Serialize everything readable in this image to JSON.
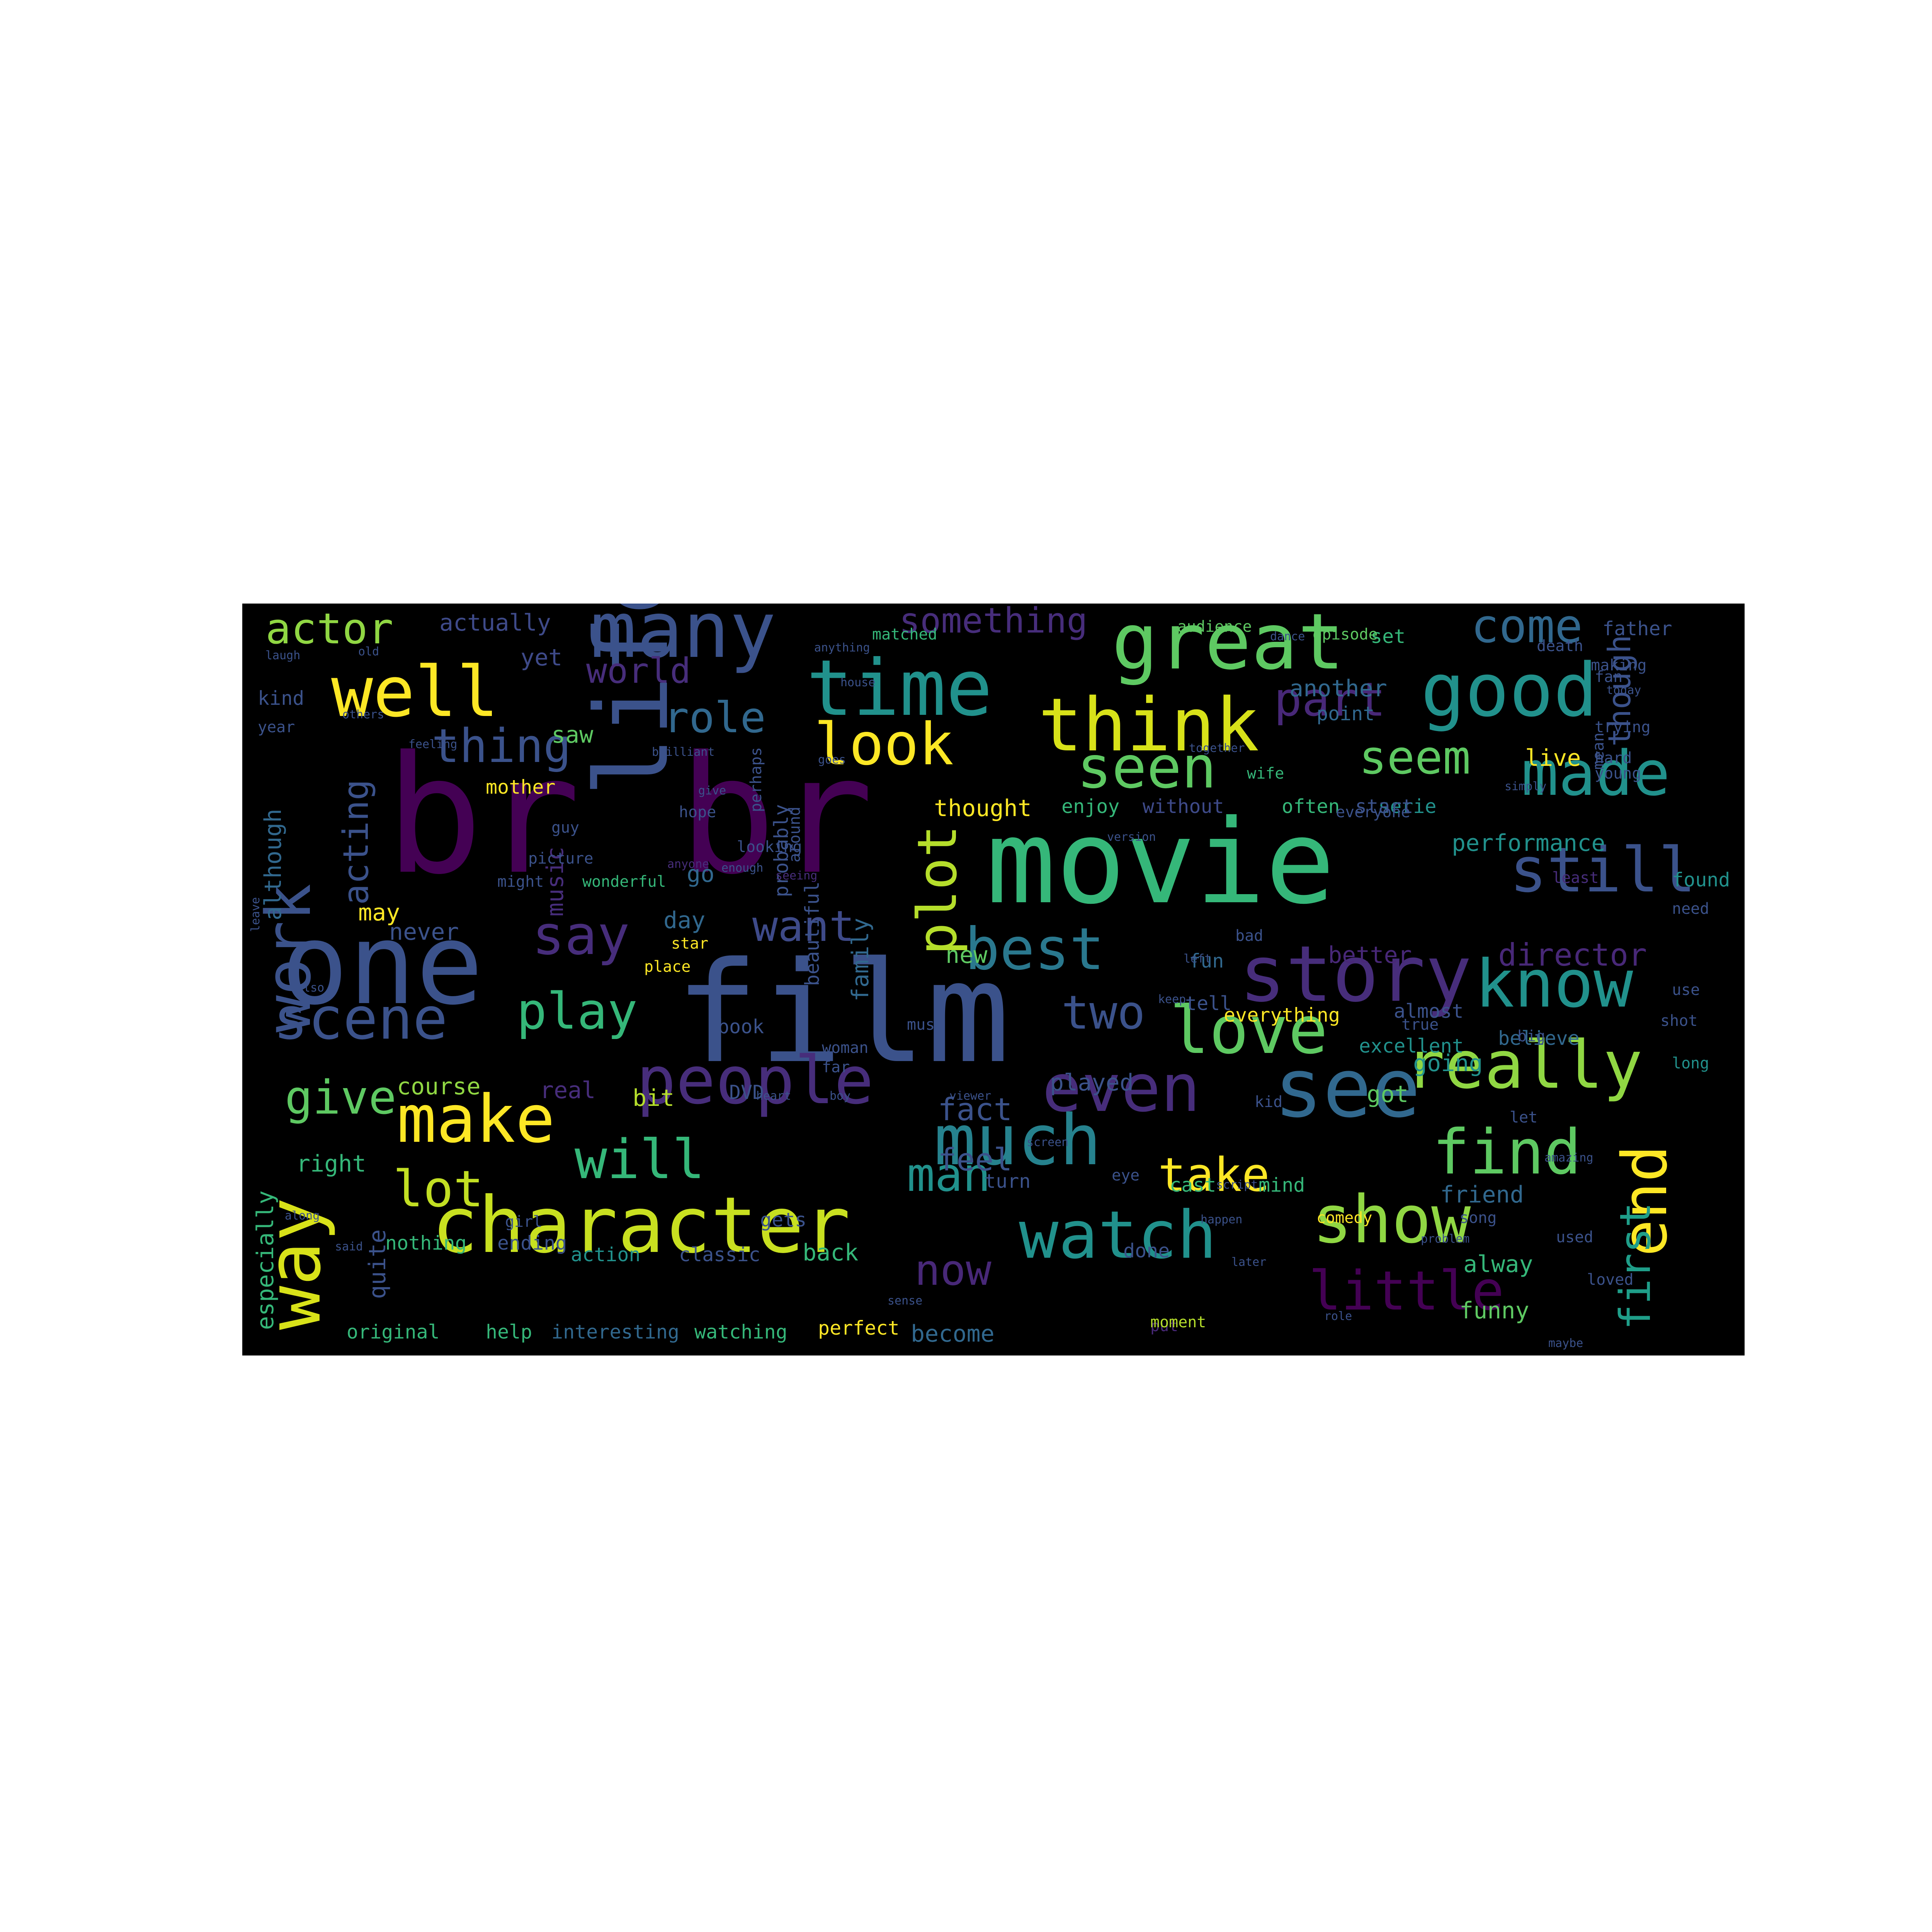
{
  "image": {
    "description_role": "word cloud rendered on black background",
    "background_color": "#000000",
    "page_color": "#ffffff",
    "palette": [
      "#440154",
      "#3b528b",
      "#21918c",
      "#5ec962",
      "#fde725",
      "#31688e",
      "#35b779",
      "#90d743",
      "#472d7b"
    ]
  },
  "words": [
    {
      "text": "br br",
      "color": "#440154"
    },
    {
      "text": "movie",
      "color": "#35b779"
    },
    {
      "text": "film",
      "color": "#3b528b"
    },
    {
      "text": "one",
      "color": "#3b528b"
    },
    {
      "text": "character",
      "color": "#c8e020"
    },
    {
      "text": "time",
      "color": "#21918c"
    },
    {
      "text": "great",
      "color": "#5ec962"
    },
    {
      "text": "good",
      "color": "#21918c"
    },
    {
      "text": "think",
      "color": "#d8e219"
    },
    {
      "text": "life",
      "color": "#3b528b"
    },
    {
      "text": "many",
      "color": "#3b528b"
    },
    {
      "text": "well",
      "color": "#fde725"
    },
    {
      "text": "story",
      "color": "#472d7b"
    },
    {
      "text": "see",
      "color": "#31688e"
    },
    {
      "text": "even",
      "color": "#472d7b"
    },
    {
      "text": "people",
      "color": "#472d7b"
    },
    {
      "text": "make",
      "color": "#fde725"
    },
    {
      "text": "watch",
      "color": "#21918c"
    },
    {
      "text": "much",
      "color": "#26828e"
    },
    {
      "text": "show",
      "color": "#90d743"
    },
    {
      "text": "really",
      "color": "#90d743"
    },
    {
      "text": "know",
      "color": "#21918c"
    },
    {
      "text": "love",
      "color": "#5ec962"
    },
    {
      "text": "made",
      "color": "#21918c"
    },
    {
      "text": "still",
      "color": "#3b528b"
    },
    {
      "text": "scene",
      "color": "#3b528b"
    },
    {
      "text": "way",
      "color": "#d8e219"
    },
    {
      "text": "work",
      "color": "#3b528b"
    },
    {
      "text": "best",
      "color": "#2a788e"
    },
    {
      "text": "say",
      "color": "#472d7b"
    },
    {
      "text": "look",
      "color": "#fde725"
    },
    {
      "text": "seen",
      "color": "#5ec962"
    },
    {
      "text": "little",
      "color": "#440154"
    },
    {
      "text": "find",
      "color": "#5ec962"
    },
    {
      "text": "end",
      "color": "#fde725"
    },
    {
      "text": "will",
      "color": "#35b779"
    },
    {
      "text": "play",
      "color": "#35b779"
    },
    {
      "text": "plot",
      "color": "#b5de2b"
    },
    {
      "text": "want",
      "color": "#3e4a89"
    },
    {
      "text": "thing",
      "color": "#3b528b"
    },
    {
      "text": "come",
      "color": "#31688e"
    },
    {
      "text": "part",
      "color": "#482878"
    },
    {
      "text": "seem",
      "color": "#5ec962"
    },
    {
      "text": "two",
      "color": "#3b528b"
    },
    {
      "text": "take",
      "color": "#fde725"
    },
    {
      "text": "give",
      "color": "#5ec962"
    },
    {
      "text": "lot",
      "color": "#c2df23"
    },
    {
      "text": "man",
      "color": "#21918c"
    },
    {
      "text": "now",
      "color": "#482878"
    },
    {
      "text": "first",
      "color": "#1f9e89"
    },
    {
      "text": "role",
      "color": "#31688e"
    },
    {
      "text": "actor",
      "color": "#90d743"
    },
    {
      "text": "acting",
      "color": "#3b528b"
    },
    {
      "text": "director",
      "color": "#482878"
    },
    {
      "text": "something",
      "color": "#472d7b"
    },
    {
      "text": "world",
      "color": "#472d7b"
    },
    {
      "text": "though",
      "color": "#3b528b"
    },
    {
      "text": "fact",
      "color": "#3b528b"
    },
    {
      "text": "feel",
      "color": "#3b528b"
    },
    {
      "text": "performance",
      "color": "#21918c"
    },
    {
      "text": "actually",
      "color": "#3e4a89"
    },
    {
      "text": "yet",
      "color": "#3e4a89"
    },
    {
      "text": "kind",
      "color": "#3b528b"
    },
    {
      "text": "saw",
      "color": "#5ec962"
    },
    {
      "text": "although",
      "color": "#31688e"
    },
    {
      "text": "especially",
      "color": "#35b779"
    },
    {
      "text": "quite",
      "color": "#3b528b"
    },
    {
      "text": "right",
      "color": "#35b779"
    },
    {
      "text": "may",
      "color": "#fde725"
    },
    {
      "text": "never",
      "color": "#3b528b"
    },
    {
      "text": "course",
      "color": "#90d743"
    },
    {
      "text": "go",
      "color": "#31688e"
    },
    {
      "text": "day",
      "color": "#31688e"
    },
    {
      "text": "music",
      "color": "#472d7b"
    },
    {
      "text": "family",
      "color": "#31688e"
    },
    {
      "text": "real",
      "color": "#472d7b"
    },
    {
      "text": "bit",
      "color": "#b5de2b"
    },
    {
      "text": "book",
      "color": "#3b528b"
    },
    {
      "text": "new",
      "color": "#5ec962"
    },
    {
      "text": "better",
      "color": "#482878"
    },
    {
      "text": "fun",
      "color": "#31688e"
    },
    {
      "text": "tell",
      "color": "#3b528b"
    },
    {
      "text": "played",
      "color": "#3b528b"
    },
    {
      "text": "going",
      "color": "#21918c"
    },
    {
      "text": "believe",
      "color": "#31688e"
    },
    {
      "text": "friend",
      "color": "#31688e"
    },
    {
      "text": "alway",
      "color": "#35b779"
    },
    {
      "text": "funny",
      "color": "#5ec962"
    },
    {
      "text": "got",
      "color": "#5ec962"
    },
    {
      "text": "back",
      "color": "#35b779"
    },
    {
      "text": "turn",
      "color": "#3b528b"
    },
    {
      "text": "cast",
      "color": "#35b779"
    },
    {
      "text": "mind",
      "color": "#35b779"
    },
    {
      "text": "become",
      "color": "#31688e"
    },
    {
      "text": "watching",
      "color": "#35b779"
    },
    {
      "text": "interesting",
      "color": "#31688e"
    },
    {
      "text": "help",
      "color": "#35b779"
    },
    {
      "text": "original",
      "color": "#35b779"
    },
    {
      "text": "live",
      "color": "#fde725"
    },
    {
      "text": "another",
      "color": "#31688e"
    },
    {
      "text": "point",
      "color": "#31688e"
    },
    {
      "text": "set",
      "color": "#35b779"
    },
    {
      "text": "serie",
      "color": "#21918c"
    },
    {
      "text": "start",
      "color": "#3b528b"
    },
    {
      "text": "thought",
      "color": "#fde725"
    },
    {
      "text": "enjoy",
      "color": "#35b779"
    },
    {
      "text": "without",
      "color": "#3e4a89"
    },
    {
      "text": "often",
      "color": "#35b779"
    },
    {
      "text": "wife",
      "color": "#35b779"
    },
    {
      "text": "excellent",
      "color": "#21918c"
    },
    {
      "text": "almost",
      "color": "#3b528b"
    },
    {
      "text": "everything",
      "color": "#fde725"
    },
    {
      "text": "found",
      "color": "#21918c"
    },
    {
      "text": "need",
      "color": "#3b528b"
    },
    {
      "text": "long",
      "color": "#21918c"
    },
    {
      "text": "shot",
      "color": "#3b528b"
    },
    {
      "text": "use",
      "color": "#3b528b"
    },
    {
      "text": "bad",
      "color": "#3b528b"
    },
    {
      "text": "nothing",
      "color": "#35b779"
    },
    {
      "text": "ending",
      "color": "#3b528b"
    },
    {
      "text": "girl",
      "color": "#3b528b"
    },
    {
      "text": "action",
      "color": "#21918c"
    },
    {
      "text": "classic",
      "color": "#3b528b"
    },
    {
      "text": "gets",
      "color": "#3b528b"
    },
    {
      "text": "comedy",
      "color": "#fde725"
    },
    {
      "text": "song",
      "color": "#3b528b"
    },
    {
      "text": "done",
      "color": "#3b528b"
    },
    {
      "text": "loved",
      "color": "#3b528b"
    },
    {
      "text": "mother",
      "color": "#fde725"
    },
    {
      "text": "father",
      "color": "#3b528b"
    },
    {
      "text": "episode",
      "color": "#5ec962"
    },
    {
      "text": "audience",
      "color": "#5ec962"
    },
    {
      "text": "matched",
      "color": "#35b779"
    },
    {
      "text": "DVD",
      "color": "#3b528b"
    },
    {
      "text": "star",
      "color": "#fde725"
    },
    {
      "text": "place",
      "color": "#fde725"
    },
    {
      "text": "perfect",
      "color": "#fde725"
    },
    {
      "text": "put",
      "color": "#482878"
    },
    {
      "text": "moment",
      "color": "#b5de2b"
    },
    {
      "text": "beautiful",
      "color": "#3b528b"
    },
    {
      "text": "probably",
      "color": "#3b528b"
    },
    {
      "text": "wonderful",
      "color": "#35b779"
    },
    {
      "text": "picture",
      "color": "#3b528b"
    },
    {
      "text": "everyone",
      "color": "#3b528b"
    },
    {
      "text": "looking",
      "color": "#3b528b"
    },
    {
      "text": "guy",
      "color": "#3b528b"
    },
    {
      "text": "year",
      "color": "#3b528b"
    },
    {
      "text": "trying",
      "color": "#3b528b"
    },
    {
      "text": "making",
      "color": "#3b528b"
    },
    {
      "text": "fan",
      "color": "#3b528b"
    },
    {
      "text": "hard",
      "color": "#3b528b"
    },
    {
      "text": "death",
      "color": "#3b528b"
    },
    {
      "text": "least",
      "color": "#472d7b"
    },
    {
      "text": "might",
      "color": "#3b528b"
    },
    {
      "text": "big",
      "color": "#3b528b"
    },
    {
      "text": "woman",
      "color": "#3b528b"
    },
    {
      "text": "far",
      "color": "#3b528b"
    },
    {
      "text": "kid",
      "color": "#3b528b"
    },
    {
      "text": "true",
      "color": "#3b528b"
    },
    {
      "text": "eye",
      "color": "#3b528b"
    },
    {
      "text": "let",
      "color": "#3b528b"
    },
    {
      "text": "must",
      "color": "#3b528b"
    },
    {
      "text": "around",
      "color": "#3b528b"
    },
    {
      "text": "young",
      "color": "#3b528b"
    },
    {
      "text": "hope",
      "color": "#3b528b"
    },
    {
      "text": "used",
      "color": "#3b528b"
    },
    {
      "text": "perhaps",
      "color": "#3b528b"
    },
    {
      "text": "together",
      "color": "#3b528b"
    },
    {
      "text": "brilliant",
      "color": "#3b528b"
    },
    {
      "text": "viewer",
      "color": "#3b528b"
    },
    {
      "text": "script",
      "color": "#3b528b"
    },
    {
      "text": "problem",
      "color": "#3b528b"
    },
    {
      "text": "maybe",
      "color": "#3b528b"
    },
    {
      "text": "amazing",
      "color": "#3b528b"
    },
    {
      "text": "mean",
      "color": "#3b528b"
    },
    {
      "text": "seeing",
      "color": "#472d7b"
    },
    {
      "text": "enough",
      "color": "#3b528b"
    },
    {
      "text": "anyone",
      "color": "#472d7b"
    },
    {
      "text": "give",
      "color": "#3b528b"
    },
    {
      "text": "laugh",
      "color": "#3b528b"
    },
    {
      "text": "old",
      "color": "#3b528b"
    },
    {
      "text": "screen",
      "color": "#3b528b"
    },
    {
      "text": "goes",
      "color": "#3b528b"
    },
    {
      "text": "also",
      "color": "#3b528b"
    },
    {
      "text": "boy",
      "color": "#3b528b"
    },
    {
      "text": "happen",
      "color": "#3b528b"
    },
    {
      "text": "anything",
      "color": "#3b528b"
    },
    {
      "text": "later",
      "color": "#3b528b"
    },
    {
      "text": "heart",
      "color": "#3b528b"
    },
    {
      "text": "keep",
      "color": "#3b528b"
    },
    {
      "text": "feeling",
      "color": "#3b528b"
    },
    {
      "text": "said",
      "color": "#3b528b"
    },
    {
      "text": "sense",
      "color": "#3b528b"
    },
    {
      "text": "leave",
      "color": "#3b528b"
    },
    {
      "text": "today",
      "color": "#3b528b"
    },
    {
      "text": "role",
      "color": "#3b528b"
    },
    {
      "text": "along",
      "color": "#3b528b"
    },
    {
      "text": "left",
      "color": "#3b528b"
    },
    {
      "text": "version",
      "color": "#3b528b"
    },
    {
      "text": "dance",
      "color": "#3b528b"
    },
    {
      "text": "house",
      "color": "#3b528b"
    },
    {
      "text": "others",
      "color": "#3b528b"
    },
    {
      "text": "simply",
      "color": "#3b528b"
    }
  ]
}
